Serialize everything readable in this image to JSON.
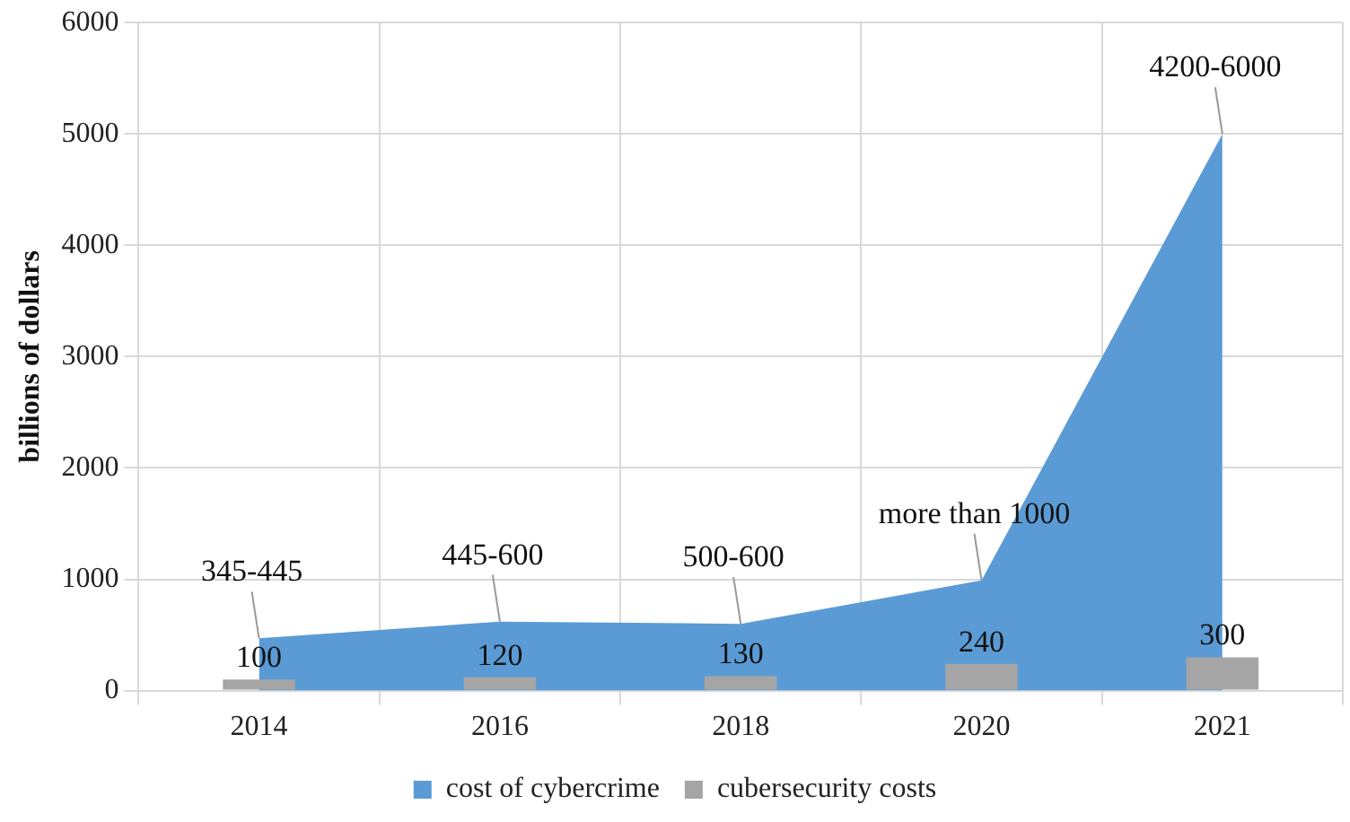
{
  "chart_data": {
    "type": "bar",
    "ylabel": "billions of dollars",
    "categories": [
      "2014",
      "2016",
      "2018",
      "2020",
      "2021"
    ],
    "series": [
      {
        "name": "cost of cybercrime",
        "type": "area",
        "color": "#5b9bd5",
        "values": [
          470,
          620,
          600,
          990,
          5000
        ],
        "value_labels": [
          "345-445",
          "445-600",
          "500-600",
          "more than 1000",
          "4200-6000"
        ]
      },
      {
        "name": "cubersecurity costs",
        "color": "#a5a5a5",
        "values": [
          100,
          120,
          130,
          240,
          300
        ],
        "value_labels": [
          "100",
          "120",
          "130",
          "240",
          "300"
        ]
      }
    ],
    "ylim": [
      0,
      6000
    ],
    "yticks": [
      0,
      1000,
      2000,
      3000,
      4000,
      5000,
      6000
    ],
    "grid": true,
    "legend": "bottom"
  }
}
